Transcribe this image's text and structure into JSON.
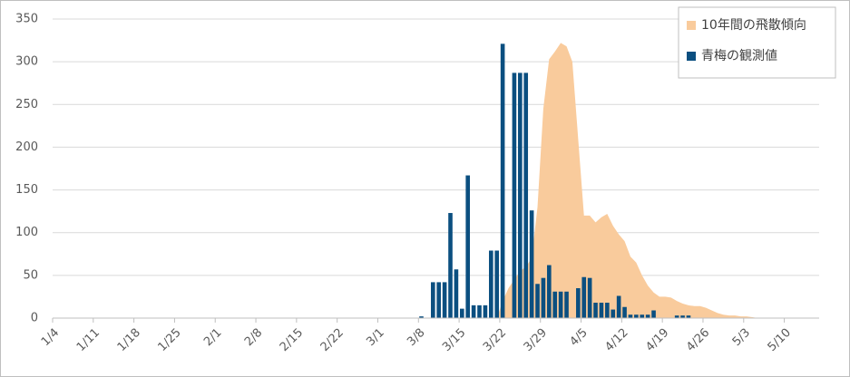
{
  "chart_data": {
    "type": "bar",
    "categories": [
      "1/4",
      null,
      null,
      null,
      null,
      null,
      null,
      "1/11",
      null,
      null,
      null,
      null,
      null,
      null,
      "1/18",
      null,
      null,
      null,
      null,
      null,
      null,
      "1/25",
      null,
      null,
      null,
      null,
      null,
      null,
      "2/1",
      null,
      null,
      null,
      null,
      null,
      null,
      "2/8",
      null,
      null,
      null,
      null,
      null,
      null,
      "2/15",
      null,
      null,
      null,
      null,
      null,
      null,
      "2/22",
      null,
      null,
      null,
      null,
      null,
      null,
      "3/1",
      null,
      null,
      null,
      null,
      null,
      null,
      "3/8",
      null,
      null,
      null,
      null,
      null,
      null,
      "3/15",
      null,
      null,
      null,
      null,
      null,
      null,
      "3/22",
      null,
      null,
      null,
      null,
      null,
      null,
      "3/29",
      null,
      null,
      null,
      null,
      null,
      null,
      "4/5",
      null,
      null,
      null,
      null,
      null,
      null,
      "4/12",
      null,
      null,
      null,
      null,
      null,
      null,
      "4/19",
      null,
      null,
      null,
      null,
      null,
      null,
      "4/26",
      null,
      null,
      null,
      null,
      null,
      null,
      "5/3",
      null,
      null,
      null,
      null,
      null,
      null,
      "5/10",
      null,
      null,
      null,
      null,
      null
    ],
    "series": [
      {
        "name": "10年間の飛散傾向",
        "type": "area",
        "color": "#f9cb9c",
        "values": [
          null,
          null,
          null,
          null,
          null,
          null,
          null,
          null,
          null,
          null,
          null,
          null,
          null,
          null,
          null,
          null,
          null,
          null,
          null,
          null,
          null,
          null,
          null,
          null,
          null,
          null,
          null,
          null,
          null,
          null,
          null,
          null,
          null,
          null,
          null,
          null,
          null,
          null,
          null,
          null,
          null,
          null,
          null,
          null,
          null,
          null,
          null,
          null,
          null,
          null,
          null,
          null,
          null,
          null,
          null,
          null,
          null,
          null,
          null,
          null,
          null,
          null,
          null,
          null,
          null,
          null,
          null,
          null,
          null,
          null,
          null,
          null,
          null,
          null,
          null,
          null,
          0,
          20,
          35,
          45,
          55,
          60,
          70,
          130,
          245,
          303,
          312,
          322,
          318,
          300,
          210,
          120,
          120,
          112,
          118,
          122,
          108,
          98,
          90,
          72,
          65,
          50,
          38,
          30,
          25,
          25,
          24,
          20,
          17,
          15,
          14,
          14,
          12,
          9,
          6,
          4,
          3,
          3,
          2,
          2,
          1,
          0,
          null,
          null,
          null,
          null,
          null,
          null,
          null,
          null,
          null,
          null
        ]
      },
      {
        "name": "青梅の観測値",
        "type": "bar",
        "color": "#0b4f80",
        "values": [
          null,
          null,
          null,
          null,
          null,
          null,
          null,
          null,
          null,
          null,
          null,
          null,
          null,
          null,
          null,
          null,
          null,
          null,
          null,
          null,
          null,
          null,
          null,
          null,
          null,
          null,
          null,
          null,
          null,
          null,
          null,
          null,
          null,
          null,
          null,
          null,
          null,
          null,
          null,
          null,
          null,
          null,
          null,
          null,
          null,
          null,
          null,
          null,
          null,
          null,
          null,
          null,
          null,
          null,
          null,
          null,
          null,
          null,
          null,
          null,
          null,
          null,
          null,
          2,
          null,
          42,
          42,
          42,
          123,
          57,
          11,
          167,
          15,
          15,
          15,
          79,
          79,
          321,
          null,
          287,
          287,
          287,
          126,
          40,
          47,
          62,
          31,
          31,
          31,
          null,
          35,
          48,
          47,
          18,
          18,
          18,
          10,
          26,
          13,
          4,
          4,
          4,
          4,
          9,
          null,
          null,
          null,
          3,
          3,
          3,
          null,
          null,
          null,
          null,
          null,
          null,
          null,
          null,
          null,
          null,
          null,
          null,
          null,
          null,
          null,
          null,
          null,
          null,
          null,
          null,
          null,
          null
        ]
      }
    ],
    "ylim": [
      0,
      350
    ],
    "yticks": [
      0,
      50,
      100,
      150,
      200,
      250,
      300,
      350
    ],
    "grid": true,
    "legend": "upper right"
  }
}
